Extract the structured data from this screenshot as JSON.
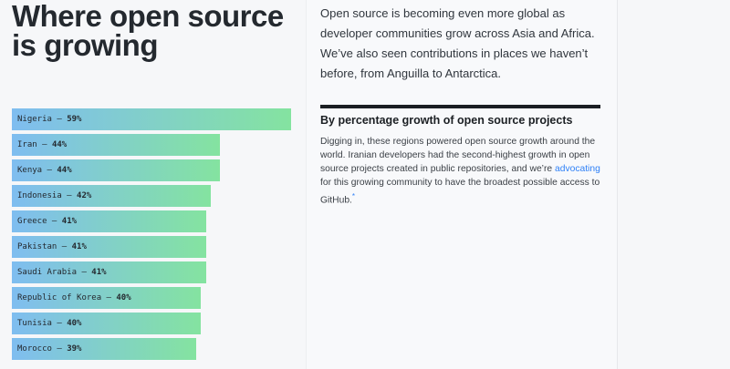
{
  "title": "Where open source is growing",
  "intro": "Open source is becoming even more global as developer communities grow across Asia and Africa. We’ve also seen contributions in places we haven’t before, from Anguilla to Antarctica.",
  "section": {
    "heading": "By percentage growth of open source projects",
    "body_before": "Digging in, these regions powered open source growth around the world. Iranian developers had the second-highest growth in open source projects created in public repositories, and we’re ",
    "link": "advocating",
    "body_after": " for this growing community to have the broadest possible access to GitHub.",
    "footnote": "*"
  },
  "chart_data": {
    "type": "bar",
    "orientation": "horizontal",
    "categories": [
      "Nigeria",
      "Iran",
      "Kenya",
      "Indonesia",
      "Greece",
      "Pakistan",
      "Saudi Arabia",
      "Republic of Korea",
      "Tunisia",
      "Morocco"
    ],
    "values": [
      59,
      44,
      44,
      42,
      41,
      41,
      41,
      40,
      40,
      39
    ],
    "unit": "%",
    "colors": {
      "gradient_start": "#7fbdf0",
      "gradient_end": "#84e3a0"
    }
  }
}
